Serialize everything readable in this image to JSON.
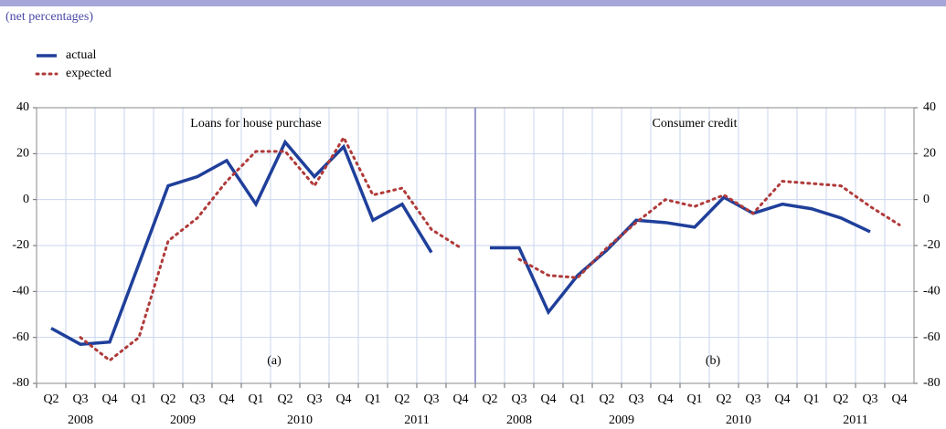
{
  "subtitle": "(net percentages)",
  "chart_data": [
    {
      "type": "line",
      "title": "Loans for house purchase",
      "annotation": "(a)",
      "categories": [
        "Q2",
        "Q3",
        "Q4",
        "Q1",
        "Q2",
        "Q3",
        "Q4",
        "Q1",
        "Q2",
        "Q3",
        "Q4",
        "Q1",
        "Q2",
        "Q3",
        "Q4"
      ],
      "groups": [
        {
          "label": "2008",
          "count": 3
        },
        {
          "label": "2009",
          "count": 4
        },
        {
          "label": "2010",
          "count": 4
        },
        {
          "label": "2011",
          "count": 4
        }
      ],
      "series": [
        {
          "name": "actual",
          "color": "#1f3f9a",
          "style": "solid",
          "values": [
            -56,
            -63,
            -62,
            -28,
            6,
            10,
            17,
            -2,
            25,
            10,
            23,
            -9,
            -2,
            -23,
            null
          ]
        },
        {
          "name": "expected",
          "color": "#b03a3a",
          "style": "dotted",
          "values": [
            null,
            -60,
            -70,
            -60,
            -18,
            -8,
            8,
            21,
            21,
            6,
            27,
            2,
            5,
            -13,
            -21
          ]
        }
      ],
      "ylim": [
        -80,
        40
      ],
      "yticks": [
        -80,
        -60,
        -40,
        -20,
        0,
        20,
        40
      ],
      "grid": true
    },
    {
      "type": "line",
      "title": "Consumer credit",
      "annotation": "(b)",
      "categories": [
        "Q2",
        "Q3",
        "Q4",
        "Q1",
        "Q2",
        "Q3",
        "Q4",
        "Q1",
        "Q2",
        "Q3",
        "Q4",
        "Q1",
        "Q2",
        "Q3",
        "Q4"
      ],
      "groups": [
        {
          "label": "2008",
          "count": 3
        },
        {
          "label": "2009",
          "count": 4
        },
        {
          "label": "2010",
          "count": 4
        },
        {
          "label": "2011",
          "count": 4
        }
      ],
      "series": [
        {
          "name": "actual",
          "color": "#1f3f9a",
          "style": "solid",
          "values": [
            -21,
            -21,
            -49,
            -33,
            -22,
            -9,
            -10,
            -12,
            1,
            -6,
            -2,
            -4,
            -8,
            -14,
            null
          ]
        },
        {
          "name": "expected",
          "color": "#b03a3a",
          "style": "dotted",
          "values": [
            null,
            -26,
            -33,
            -34,
            -21,
            -10,
            0,
            -3,
            2,
            -6,
            8,
            7,
            6,
            -3,
            -11
          ]
        }
      ],
      "ylim": [
        -80,
        40
      ],
      "yticks": [
        -80,
        -60,
        -40,
        -20,
        0,
        20,
        40
      ],
      "grid": true
    }
  ]
}
